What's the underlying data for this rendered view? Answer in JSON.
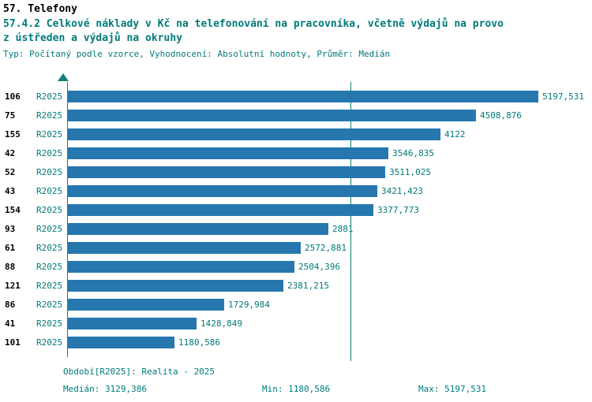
{
  "header": {
    "title": "57. Telefony",
    "subtitle_line1": "57.4.2 Celkové náklady v Kč na telefonování na pracovníka, včetně výdajů na provo",
    "subtitle_line2": "z ústředen a výdajů na okruhy",
    "meta": "Typ: Počítaný podle vzorce, Vyhodnocení: Absolutní hodnoty, Průměr: Medián"
  },
  "chart_data": {
    "type": "bar",
    "orientation": "horizontal",
    "title": "57.4.2 Celkové náklady v Kč na telefonování na pracovníka, včetně výdajů na provoz ústředen a výdajů na okruhy",
    "categories": [
      "106",
      "75",
      "155",
      "42",
      "52",
      "43",
      "154",
      "93",
      "61",
      "88",
      "121",
      "86",
      "41",
      "101"
    ],
    "series": [
      {
        "name": "R2025",
        "values": [
          5197.531,
          4508.876,
          4122,
          3546.835,
          3511.025,
          3421.423,
          3377.773,
          2881,
          2572.881,
          2504.396,
          2381.215,
          1729.984,
          1428.849,
          1180.586
        ]
      }
    ],
    "value_labels": [
      "5197,531",
      "4508,876",
      "4122",
      "3546,835",
      "3511,025",
      "3421,423",
      "3377,773",
      "2881",
      "2572,881",
      "2504,396",
      "2381,215",
      "1729,984",
      "1428,849",
      "1180,586"
    ],
    "median": 3129.386,
    "xlim": [
      0,
      5600
    ],
    "grid": false,
    "legend": false,
    "bar_color": "#2577ae",
    "axis_color": "#0f8276",
    "label_color": "#007a7a"
  },
  "footer": {
    "period": "Období[R2025]: Realita - 2025",
    "median": "Medián: 3129,386",
    "min": "Min: 1180,586",
    "max": "Max: 5197,531"
  }
}
